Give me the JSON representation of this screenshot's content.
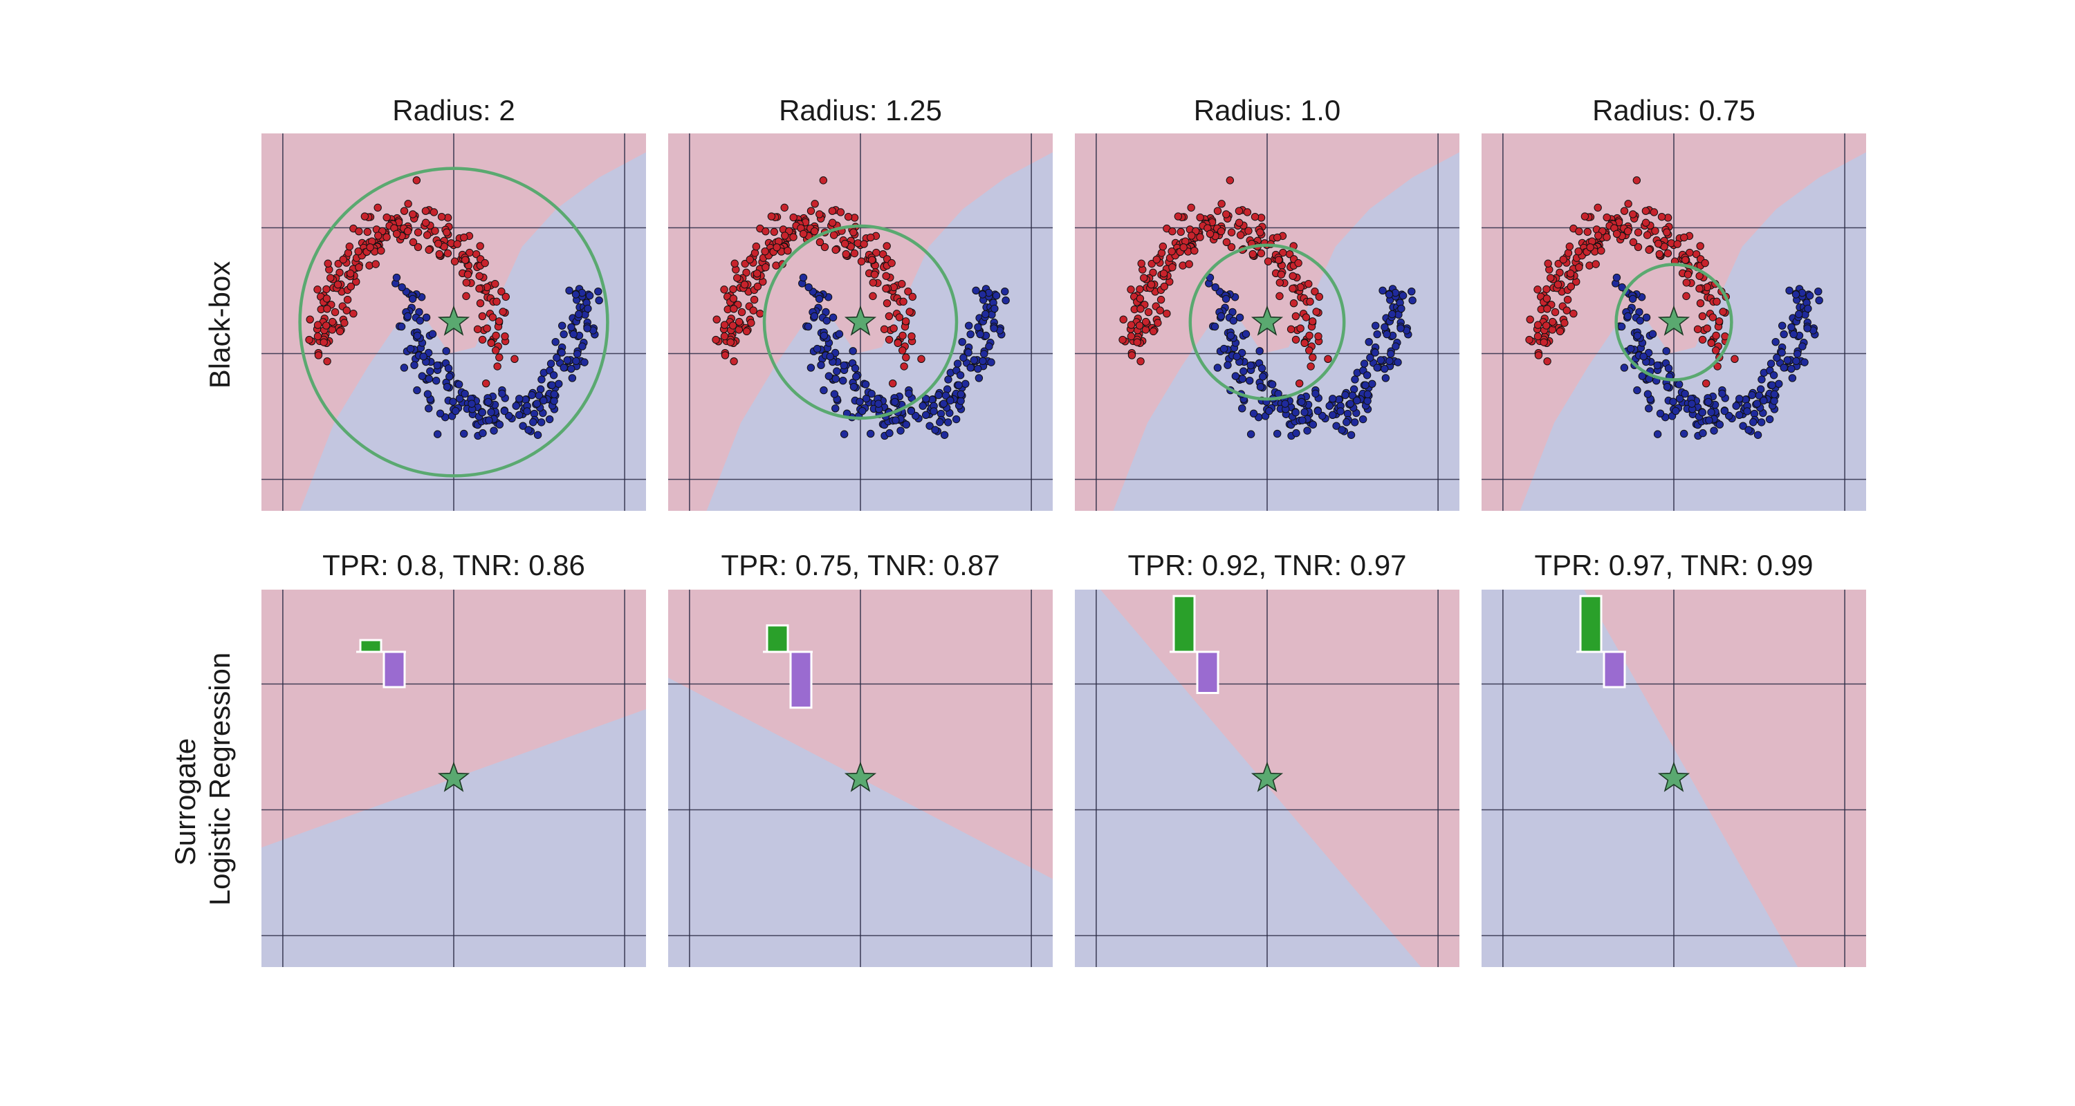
{
  "figure": {
    "row_labels": [
      "Black-box",
      "Surrogate",
      "Logistic Regression"
    ]
  },
  "colors": {
    "red_region": "#e0b9c6",
    "blue_region": "#c3c6e0",
    "red_points": "#c8232c",
    "blue_points": "#1f2a9c",
    "circle": "#5aa970",
    "star": "#5aa970",
    "bar_green": "#2aa02a",
    "bar_purple": "#9a6bd0",
    "grid": "#2b2b45"
  },
  "chart_data": [
    {
      "type": "scatter",
      "row": "Black-box",
      "title": "Radius: 2",
      "radius": 2,
      "star": [
        0.5,
        0.25
      ],
      "xlim": [
        -1.75,
        2.75
      ],
      "ylim": [
        -1.25,
        1.75
      ],
      "grid_x": [
        -1.5,
        0.5,
        2.5
      ],
      "grid_y": [
        -1,
        0,
        1
      ]
    },
    {
      "type": "scatter",
      "row": "Black-box",
      "title": "Radius: 1.25",
      "radius": 1.25,
      "star": [
        0.5,
        0.25
      ],
      "xlim": [
        -1.75,
        2.75
      ],
      "ylim": [
        -1.25,
        1.75
      ],
      "grid_x": [
        -1.5,
        0.5,
        2.5
      ],
      "grid_y": [
        -1,
        0,
        1
      ]
    },
    {
      "type": "scatter",
      "row": "Black-box",
      "title": "Radius: 1.0",
      "radius": 1.0,
      "star": [
        0.5,
        0.25
      ],
      "xlim": [
        -1.75,
        2.75
      ],
      "ylim": [
        -1.25,
        1.75
      ],
      "grid_x": [
        -1.5,
        0.5,
        2.5
      ],
      "grid_y": [
        -1,
        0,
        1
      ]
    },
    {
      "type": "scatter",
      "row": "Black-box",
      "title": "Radius: 0.75",
      "radius": 0.75,
      "star": [
        0.5,
        0.25
      ],
      "xlim": [
        -1.75,
        2.75
      ],
      "ylim": [
        -1.25,
        1.75
      ],
      "grid_x": [
        -1.5,
        0.5,
        2.5
      ],
      "grid_y": [
        -1,
        0,
        1
      ]
    },
    {
      "type": "bar",
      "row": "Surrogate Logistic Regression",
      "title": "TPR: 0.8, TNR: 0.86",
      "tpr": 0.8,
      "tnr": 0.86,
      "coefficients": [
        0.2,
        -0.6
      ],
      "star": [
        0.5,
        0.25
      ],
      "boundary": [
        [
          -1.75,
          -0.3
        ],
        [
          2.75,
          0.8
        ]
      ],
      "red_side": "above"
    },
    {
      "type": "bar",
      "row": "Surrogate Logistic Regression",
      "title": "TPR: 0.75, TNR: 0.87",
      "tpr": 0.75,
      "tnr": 0.87,
      "coefficients": [
        0.45,
        -0.95
      ],
      "star": [
        0.5,
        0.25
      ],
      "boundary": [
        [
          -1.75,
          1.05
        ],
        [
          2.75,
          -0.55
        ]
      ],
      "red_side": "above"
    },
    {
      "type": "bar",
      "row": "Surrogate Logistic Regression",
      "title": "TPR: 0.92, TNR: 0.97",
      "tpr": 0.92,
      "tnr": 0.97,
      "coefficients": [
        0.95,
        -0.7
      ],
      "star": [
        0.5,
        0.25
      ],
      "boundary": [
        [
          -1.45,
          1.75
        ],
        [
          2.3,
          -1.25
        ]
      ],
      "red_side": "right"
    },
    {
      "type": "bar",
      "row": "Surrogate Logistic Regression",
      "title": "TPR: 0.97, TNR: 0.99",
      "tpr": 0.97,
      "tnr": 0.99,
      "coefficients": [
        0.95,
        -0.6
      ],
      "star": [
        0.5,
        0.25
      ],
      "boundary": [
        [
          -0.55,
          1.75
        ],
        [
          1.95,
          -1.25
        ]
      ],
      "red_side": "right"
    }
  ]
}
